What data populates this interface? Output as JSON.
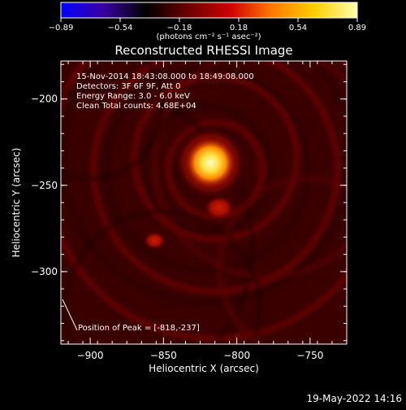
{
  "colorbar": {
    "ticks": [
      "-0.89",
      "-0.54",
      "-0.18",
      "0.18",
      "0.54",
      "0.89"
    ],
    "units": "(photons cm⁻² s⁻¹ asec⁻²)",
    "colors": [
      "#0000ff",
      "#3a00a0",
      "#000000",
      "#6a0000",
      "#d00000",
      "#ff7a00",
      "#ffd000",
      "#ffffb0"
    ]
  },
  "footer": {
    "timestamp": "19-May-2022 14:16"
  },
  "chart_data": {
    "type": "heatmap",
    "title": "Reconstructed RHESSI Image",
    "xlabel": "Heliocentric X (arcsec)",
    "ylabel": "Heliocentric Y (arcsec)",
    "xlim": [
      -920,
      -725
    ],
    "ylim": [
      -342,
      -178
    ],
    "x_ticks": [
      {
        "value": -900,
        "label": "−900"
      },
      {
        "value": -850,
        "label": "−850"
      },
      {
        "value": -800,
        "label": "−800"
      },
      {
        "value": -750,
        "label": "−750"
      }
    ],
    "y_ticks": [
      {
        "value": -200,
        "label": "−200"
      },
      {
        "value": -250,
        "label": "−250"
      },
      {
        "value": -300,
        "label": "−300"
      }
    ],
    "info_lines": [
      "15-Nov-2014 18:43:08.000 to 18:49:08.000",
      "Detectors: 3F 6F 9F, Att 0",
      "Energy Range: 3.0 - 6.0 keV",
      "Clean    Total counts: 4.68E+04"
    ],
    "annotation": "Position of Peak = [-818,-237]",
    "peak": {
      "x": -818,
      "y": -237
    },
    "sources": [
      {
        "x": -818,
        "y": -237,
        "peak": 1.0
      },
      {
        "x": -812,
        "y": -263,
        "peak": 0.3
      },
      {
        "x": -856,
        "y": -282,
        "peak": 0.22
      }
    ]
  }
}
